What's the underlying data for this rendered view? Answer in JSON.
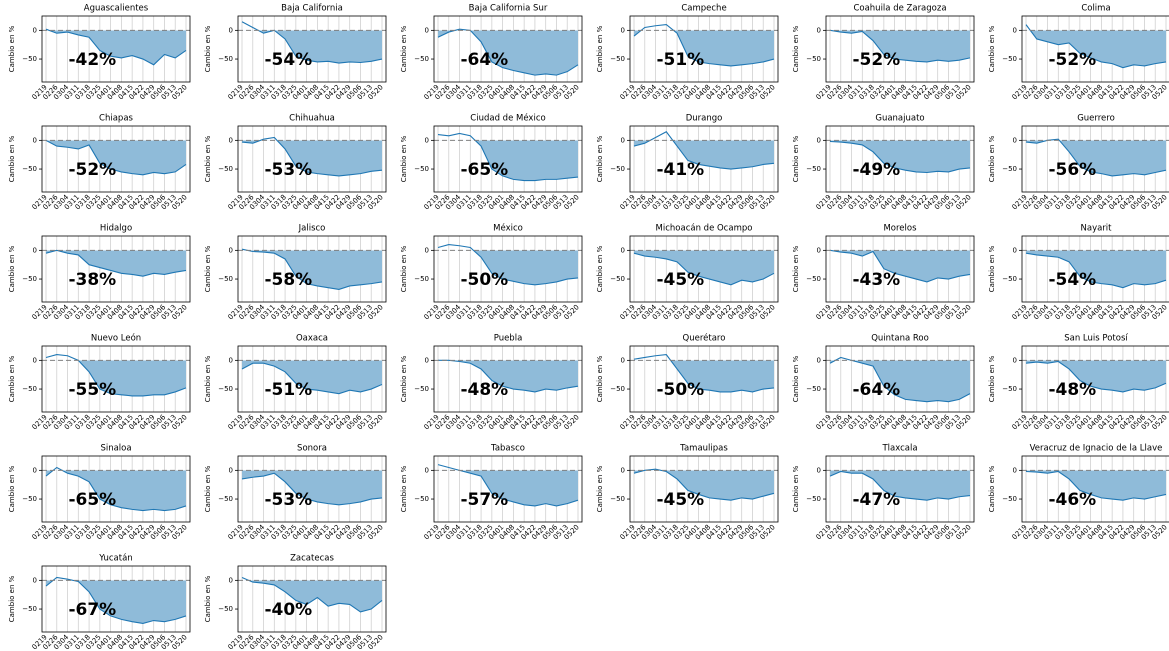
{
  "axes": {
    "ylabel": "Cambio en %",
    "categories": [
      "0219",
      "0226",
      "0304",
      "0311",
      "0318",
      "0325",
      "0401",
      "0408",
      "0415",
      "0422",
      "0429",
      "0506",
      "0513",
      "0520"
    ],
    "ylim": [
      -90,
      25
    ],
    "yticks": [
      {
        "value": -50,
        "label": "−50"
      },
      0
    ],
    "color": "#1f77b4",
    "fill": "#8fbbd9",
    "grid": true
  },
  "chart_data": [
    {
      "type": "area",
      "title": "Aguascalientes",
      "annotation": "-42%",
      "values": [
        2,
        -5,
        -3,
        -8,
        -12,
        -35,
        -45,
        -48,
        -44,
        -50,
        -60,
        -42,
        -48,
        -35
      ]
    },
    {
      "type": "area",
      "title": "Baja California",
      "annotation": "-54%",
      "values": [
        15,
        5,
        -5,
        0,
        -15,
        -45,
        -52,
        -55,
        -54,
        -57,
        -55,
        -56,
        -54,
        -50
      ]
    },
    {
      "type": "area",
      "title": "Baja California Sur",
      "annotation": "-64%",
      "values": [
        -12,
        -3,
        2,
        0,
        -20,
        -55,
        -65,
        -70,
        -74,
        -78,
        -76,
        -78,
        -72,
        -60
      ]
    },
    {
      "type": "area",
      "title": "Campeche",
      "annotation": "-51%",
      "values": [
        -10,
        5,
        8,
        10,
        -5,
        -45,
        -55,
        -58,
        -60,
        -62,
        -60,
        -58,
        -55,
        -50
      ]
    },
    {
      "type": "area",
      "title": "Coahuila de Zaragoza",
      "annotation": "-52%",
      "values": [
        0,
        -3,
        -5,
        -2,
        -18,
        -42,
        -50,
        -52,
        -54,
        -55,
        -52,
        -54,
        -52,
        -48
      ]
    },
    {
      "type": "area",
      "title": "Colima",
      "annotation": "-52%",
      "values": [
        10,
        -15,
        -20,
        -25,
        -22,
        -40,
        -48,
        -55,
        -58,
        -65,
        -60,
        -62,
        -58,
        -55
      ]
    },
    {
      "type": "area",
      "title": "Chiapas",
      "annotation": "-52%",
      "values": [
        0,
        -10,
        -12,
        -15,
        -8,
        -40,
        -50,
        -55,
        -58,
        -60,
        -56,
        -58,
        -55,
        -42
      ]
    },
    {
      "type": "area",
      "title": "Chihuahua",
      "annotation": "-53%",
      "values": [
        -3,
        -5,
        2,
        5,
        -15,
        -45,
        -55,
        -58,
        -60,
        -62,
        -60,
        -58,
        -54,
        -52
      ]
    },
    {
      "type": "area",
      "title": "Ciudad de México",
      "annotation": "-65%",
      "values": [
        10,
        8,
        12,
        8,
        -10,
        -50,
        -62,
        -68,
        -70,
        -70,
        -68,
        -68,
        -66,
        -64
      ]
    },
    {
      "type": "area",
      "title": "Durango",
      "annotation": "-41%",
      "values": [
        -10,
        -5,
        5,
        15,
        -10,
        -35,
        -42,
        -45,
        -48,
        -50,
        -48,
        -46,
        -42,
        -40
      ]
    },
    {
      "type": "area",
      "title": "Guanajuato",
      "annotation": "-49%",
      "values": [
        -2,
        -3,
        -5,
        -8,
        -20,
        -40,
        -48,
        -52,
        -55,
        -56,
        -54,
        -55,
        -50,
        -48
      ]
    },
    {
      "type": "area",
      "title": "Guerrero",
      "annotation": "-56%",
      "values": [
        -3,
        -5,
        0,
        2,
        -20,
        -45,
        -55,
        -58,
        -62,
        -60,
        -58,
        -60,
        -56,
        -52
      ]
    },
    {
      "type": "area",
      "title": "Hidalgo",
      "annotation": "-38%",
      "values": [
        -5,
        0,
        -5,
        -8,
        -25,
        -30,
        -35,
        -40,
        -42,
        -45,
        -40,
        -42,
        -38,
        -35
      ]
    },
    {
      "type": "area",
      "title": "Jalisco",
      "annotation": "-58%",
      "values": [
        2,
        -2,
        -3,
        -5,
        -15,
        -45,
        -58,
        -62,
        -65,
        -68,
        -62,
        -60,
        -58,
        -55
      ]
    },
    {
      "type": "area",
      "title": "México",
      "annotation": "-50%",
      "values": [
        5,
        10,
        8,
        5,
        -12,
        -40,
        -50,
        -54,
        -58,
        -60,
        -58,
        -55,
        -50,
        -48
      ]
    },
    {
      "type": "area",
      "title": "Michoacán de Ocampo",
      "annotation": "-45%",
      "values": [
        -5,
        -10,
        -12,
        -15,
        -20,
        -38,
        -45,
        -50,
        -55,
        -60,
        -52,
        -55,
        -50,
        -40
      ]
    },
    {
      "type": "area",
      "title": "Morelos",
      "annotation": "-43%",
      "values": [
        0,
        -3,
        -5,
        -10,
        -2,
        -32,
        -40,
        -45,
        -50,
        -55,
        -48,
        -50,
        -45,
        -42
      ]
    },
    {
      "type": "area",
      "title": "Nayarit",
      "annotation": "-54%",
      "values": [
        -5,
        -8,
        -10,
        -12,
        -20,
        -45,
        -55,
        -58,
        -60,
        -65,
        -58,
        -60,
        -58,
        -52
      ]
    },
    {
      "type": "area",
      "title": "Nuevo León",
      "annotation": "-55%",
      "values": [
        5,
        10,
        8,
        0,
        -20,
        -50,
        -58,
        -60,
        -62,
        -62,
        -60,
        -60,
        -55,
        -48
      ]
    },
    {
      "type": "area",
      "title": "Oaxaca",
      "annotation": "-51%",
      "values": [
        -15,
        -5,
        -5,
        -10,
        -20,
        -40,
        -50,
        -52,
        -55,
        -58,
        -52,
        -55,
        -50,
        -42
      ]
    },
    {
      "type": "area",
      "title": "Puebla",
      "annotation": "-48%",
      "values": [
        0,
        0,
        -2,
        -5,
        -15,
        -35,
        -45,
        -50,
        -52,
        -55,
        -50,
        -52,
        -48,
        -45
      ]
    },
    {
      "type": "area",
      "title": "Querétaro",
      "annotation": "-50%",
      "values": [
        2,
        5,
        8,
        10,
        -15,
        -40,
        -50,
        -52,
        -55,
        -55,
        -52,
        -55,
        -50,
        -48
      ]
    },
    {
      "type": "area",
      "title": "Quintana Roo",
      "annotation": "-64%",
      "values": [
        -5,
        5,
        0,
        -5,
        -10,
        -45,
        -60,
        -68,
        -70,
        -72,
        -70,
        -72,
        -68,
        -58
      ]
    },
    {
      "type": "area",
      "title": "San Luis Potosí",
      "annotation": "-48%",
      "values": [
        -5,
        -3,
        -5,
        -2,
        -15,
        -35,
        -45,
        -50,
        -52,
        -55,
        -50,
        -52,
        -48,
        -40
      ]
    },
    {
      "type": "area",
      "title": "Sinaloa",
      "annotation": "-65%",
      "values": [
        -10,
        5,
        -5,
        -10,
        -20,
        -50,
        -60,
        -65,
        -68,
        -70,
        -68,
        -70,
        -68,
        -62
      ]
    },
    {
      "type": "area",
      "title": "Sonora",
      "annotation": "-53%",
      "values": [
        -15,
        -12,
        -10,
        -5,
        -20,
        -40,
        -50,
        -55,
        -58,
        -60,
        -58,
        -55,
        -50,
        -48
      ]
    },
    {
      "type": "area",
      "title": "Tabasco",
      "annotation": "-57%",
      "values": [
        10,
        5,
        0,
        -5,
        -10,
        -40,
        -50,
        -55,
        -60,
        -62,
        -58,
        -62,
        -58,
        -52
      ]
    },
    {
      "type": "area",
      "title": "Tamaulipas",
      "annotation": "-45%",
      "values": [
        -5,
        0,
        2,
        -2,
        -15,
        -35,
        -42,
        -48,
        -50,
        -52,
        -48,
        -50,
        -45,
        -40
      ]
    },
    {
      "type": "area",
      "title": "Tlaxcala",
      "annotation": "-47%",
      "values": [
        -10,
        -2,
        -5,
        -5,
        -15,
        -35,
        -45,
        -48,
        -50,
        -52,
        -48,
        -50,
        -46,
        -44
      ]
    },
    {
      "type": "area",
      "title": "Veracruz de Ignacio de la Llave",
      "annotation": "-46%",
      "values": [
        -2,
        -3,
        -5,
        -2,
        -15,
        -35,
        -42,
        -48,
        -50,
        -52,
        -48,
        -50,
        -46,
        -42
      ]
    },
    {
      "type": "area",
      "title": "Yucatán",
      "annotation": "-67%",
      "values": [
        -10,
        5,
        2,
        -2,
        -20,
        -50,
        -62,
        -68,
        -72,
        -75,
        -70,
        -72,
        -68,
        -62
      ]
    },
    {
      "type": "area",
      "title": "Zacatecas",
      "annotation": "-40%",
      "values": [
        5,
        -3,
        -5,
        -8,
        -20,
        -35,
        -42,
        -30,
        -45,
        -40,
        -42,
        -55,
        -50,
        -35
      ]
    }
  ]
}
